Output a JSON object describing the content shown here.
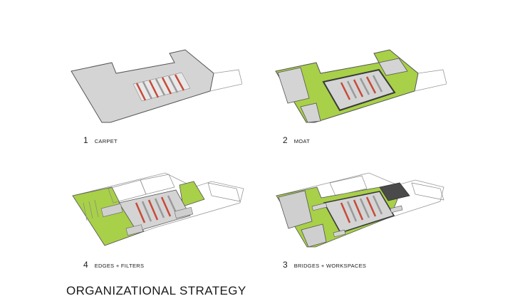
{
  "title": "ORGANIZATIONAL STRATEGY",
  "steps": [
    {
      "number": "1",
      "label": "CARPET"
    },
    {
      "number": "2",
      "label": "MOAT"
    },
    {
      "number": "4",
      "label": "EDGES + FILTERS"
    },
    {
      "number": "3",
      "label": "BRIDGES + WORKSPACES"
    }
  ],
  "colors": {
    "slab": "#d4d4d4",
    "outline": "#555555",
    "moat": "#a8d048",
    "stripe_red": "#c74b3a",
    "stripe_gray": "#9a9a9a",
    "stripe_light": "#e8e8e8",
    "wall_dark": "#4a4a4a",
    "ground_line": "#999999"
  }
}
